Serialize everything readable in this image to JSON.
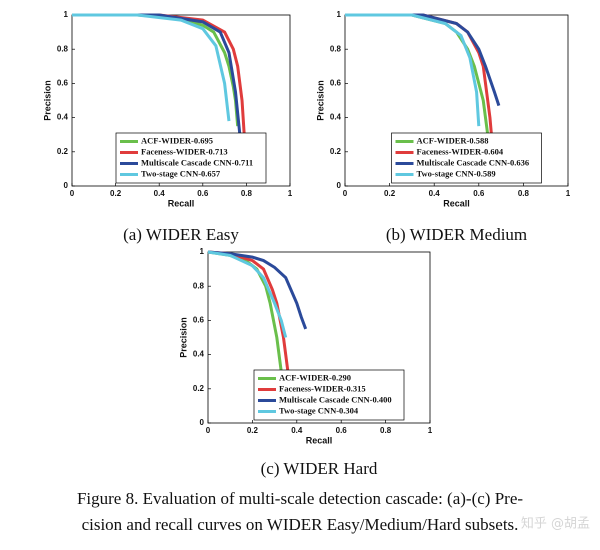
{
  "chart_data": [
    {
      "type": "line",
      "title": "(a)  WIDER Easy",
      "x_label": "Recall",
      "y_label": "Precision",
      "xlim": [
        0,
        1
      ],
      "ylim": [
        0,
        1
      ],
      "xticks": [
        0,
        0.2,
        0.4,
        0.6,
        0.8,
        1
      ],
      "yticks": [
        0,
        0.2,
        0.4,
        0.6,
        0.8,
        1
      ],
      "legend": "lower center",
      "series": [
        {
          "name": "ACF-WIDER-0.695",
          "color": "#6abf4b",
          "x": [
            0,
            0.3,
            0.5,
            0.6,
            0.65,
            0.7,
            0.72,
            0.74,
            0.75,
            0.76
          ],
          "values": [
            1,
            1,
            0.98,
            0.94,
            0.9,
            0.78,
            0.7,
            0.58,
            0.5,
            0.35
          ]
        },
        {
          "name": "Faceness-WIDER-0.713",
          "color": "#e03c3c",
          "x": [
            0,
            0.4,
            0.6,
            0.7,
            0.74,
            0.76,
            0.78,
            0.79,
            0.8
          ],
          "values": [
            1,
            1,
            0.97,
            0.9,
            0.8,
            0.7,
            0.5,
            0.3,
            0.12
          ]
        },
        {
          "name": "Multiscale Cascade CNN-0.711",
          "color": "#2b4a9a",
          "x": [
            0,
            0.4,
            0.6,
            0.68,
            0.72,
            0.75,
            0.77
          ],
          "values": [
            1,
            1,
            0.96,
            0.9,
            0.78,
            0.55,
            0.3
          ]
        },
        {
          "name": "Two-stage CNN-0.657",
          "color": "#5fc8e0",
          "x": [
            0,
            0.3,
            0.5,
            0.6,
            0.66,
            0.7,
            0.72
          ],
          "values": [
            1,
            1,
            0.97,
            0.92,
            0.82,
            0.6,
            0.38
          ]
        }
      ]
    },
    {
      "type": "line",
      "title": "(b)  WIDER Medium",
      "x_label": "Recall",
      "y_label": "Precision",
      "xlim": [
        0,
        1
      ],
      "ylim": [
        0,
        1
      ],
      "xticks": [
        0,
        0.2,
        0.4,
        0.6,
        0.8,
        1
      ],
      "yticks": [
        0,
        0.2,
        0.4,
        0.6,
        0.8,
        1
      ],
      "legend": "lower center",
      "series": [
        {
          "name": "ACF-WIDER-0.588",
          "color": "#6abf4b",
          "x": [
            0,
            0.3,
            0.45,
            0.5,
            0.55,
            0.58,
            0.62,
            0.64,
            0.66
          ],
          "values": [
            1,
            1,
            0.95,
            0.9,
            0.8,
            0.7,
            0.5,
            0.3,
            0.1
          ]
        },
        {
          "name": "Faceness-WIDER-0.604",
          "color": "#e03c3c",
          "x": [
            0,
            0.35,
            0.5,
            0.55,
            0.6,
            0.62,
            0.65,
            0.67
          ],
          "values": [
            1,
            1,
            0.95,
            0.9,
            0.78,
            0.7,
            0.4,
            0.1
          ]
        },
        {
          "name": "Multiscale Cascade CNN-0.636",
          "color": "#2b4a9a",
          "x": [
            0,
            0.35,
            0.5,
            0.55,
            0.6,
            0.63,
            0.67,
            0.69
          ],
          "values": [
            1,
            1,
            0.95,
            0.9,
            0.8,
            0.7,
            0.55,
            0.47
          ]
        },
        {
          "name": "Two-stage CNN-0.589",
          "color": "#5fc8e0",
          "x": [
            0,
            0.3,
            0.45,
            0.52,
            0.56,
            0.59,
            0.6
          ],
          "values": [
            1,
            1,
            0.95,
            0.88,
            0.75,
            0.55,
            0.35
          ]
        }
      ]
    },
    {
      "type": "line",
      "title": "(c)  WIDER Hard",
      "x_label": "Recall",
      "y_label": "Precision",
      "xlim": [
        0,
        1
      ],
      "ylim": [
        0,
        1
      ],
      "xticks": [
        0,
        0.2,
        0.4,
        0.6,
        0.8,
        1
      ],
      "yticks": [
        0,
        0.2,
        0.4,
        0.6,
        0.8,
        1
      ],
      "legend": "lower center",
      "series": [
        {
          "name": "ACF-WIDER-0.290",
          "color": "#6abf4b",
          "x": [
            0,
            0.1,
            0.18,
            0.22,
            0.26,
            0.28,
            0.31,
            0.33
          ],
          "values": [
            1,
            0.98,
            0.94,
            0.9,
            0.8,
            0.7,
            0.5,
            0.3
          ]
        },
        {
          "name": "Faceness-WIDER-0.315",
          "color": "#e03c3c",
          "x": [
            0,
            0.1,
            0.2,
            0.25,
            0.29,
            0.31,
            0.34,
            0.36
          ],
          "values": [
            1,
            0.99,
            0.95,
            0.9,
            0.78,
            0.7,
            0.5,
            0.3
          ]
        },
        {
          "name": "Multiscale Cascade CNN-0.400",
          "color": "#2b4a9a",
          "x": [
            0,
            0.1,
            0.2,
            0.25,
            0.3,
            0.35,
            0.4,
            0.42,
            0.44
          ],
          "values": [
            1,
            0.99,
            0.97,
            0.95,
            0.91,
            0.85,
            0.7,
            0.62,
            0.55
          ]
        },
        {
          "name": "Two-stage CNN-0.304",
          "color": "#5fc8e0",
          "x": [
            0,
            0.1,
            0.2,
            0.25,
            0.3,
            0.33,
            0.35
          ],
          "values": [
            1,
            0.98,
            0.92,
            0.85,
            0.7,
            0.6,
            0.5
          ]
        }
      ]
    }
  ],
  "figure_caption": [
    "Figure 8. Evaluation of multi-scale detection cascade: (a)-(c) Pre-",
    "cision and recall curves on WIDER Easy/Medium/Hard subsets."
  ],
  "watermark": "知乎 @胡孟"
}
